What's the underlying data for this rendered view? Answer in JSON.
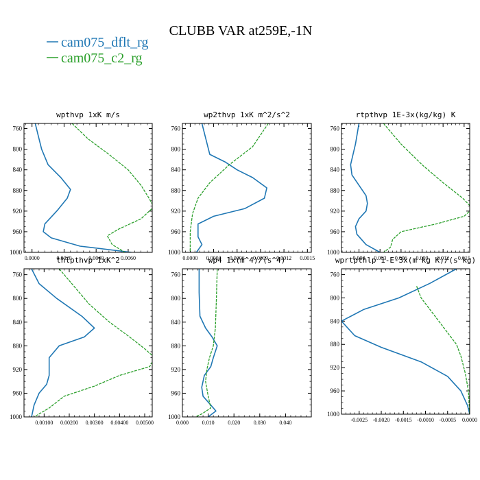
{
  "figure": {
    "title": "CLUBB VAR at259E,-1N",
    "legend": [
      {
        "label": "cam075_dflt_rg",
        "color": "#1f77b4"
      },
      {
        "label": "cam075_c2_rg",
        "color": "#2ca02c"
      }
    ]
  },
  "chart_data": [
    {
      "type": "line",
      "title": "wpthvp  1xK m/s",
      "ylim": [
        1000,
        750
      ],
      "yticks": [
        760,
        800,
        840,
        880,
        920,
        960,
        1000
      ],
      "xlim": [
        -0.0005,
        0.0075
      ],
      "xticks": [
        0.0,
        0.002,
        0.004,
        0.006
      ],
      "xticklabels": [
        "0.0000",
        "0.0020",
        "0.0040",
        "0.0060"
      ],
      "series": [
        {
          "name": "cam075_dflt_rg",
          "color": "#1f77b4",
          "dashed": false,
          "points": [
            [
              0.0002,
              750
            ],
            [
              0.0004,
              775
            ],
            [
              0.0006,
              800
            ],
            [
              0.001,
              830
            ],
            [
              0.0018,
              855
            ],
            [
              0.0024,
              878
            ],
            [
              0.0022,
              895
            ],
            [
              0.0016,
              918
            ],
            [
              0.0008,
              945
            ],
            [
              0.0007,
              960
            ],
            [
              0.0012,
              972
            ],
            [
              0.003,
              988
            ],
            [
              0.0062,
              1000
            ]
          ]
        },
        {
          "name": "cam075_c2_rg",
          "color": "#2ca02c",
          "dashed": true,
          "points": [
            [
              0.0025,
              750
            ],
            [
              0.0035,
              780
            ],
            [
              0.0048,
              810
            ],
            [
              0.006,
              840
            ],
            [
              0.0068,
              870
            ],
            [
              0.0073,
              895
            ],
            [
              0.0076,
              912
            ],
            [
              0.0068,
              935
            ],
            [
              0.0054,
              955
            ],
            [
              0.0047,
              968
            ],
            [
              0.005,
              985
            ],
            [
              0.0058,
              1000
            ]
          ]
        }
      ]
    },
    {
      "type": "line",
      "title": "wp2thvp  1xK m^2/s^2",
      "ylim": [
        1000,
        750
      ],
      "yticks": [
        760,
        800,
        840,
        880,
        920,
        960,
        1000
      ],
      "xlim": [
        -0.0001,
        0.00155
      ],
      "xticks": [
        0.0,
        0.0003,
        0.0006,
        0.0009,
        0.0012,
        0.0015
      ],
      "xticklabels": [
        "0.0000",
        "0.0003",
        "0.0006",
        "0.0009",
        "0.0012",
        "0.0015"
      ],
      "series": [
        {
          "name": "cam075_dflt_rg",
          "color": "#1f77b4",
          "dashed": false,
          "points": [
            [
              0.00015,
              750
            ],
            [
              0.0002,
              780
            ],
            [
              0.00025,
              810
            ],
            [
              0.00045,
              825
            ],
            [
              0.0006,
              840
            ],
            [
              0.0008,
              855
            ],
            [
              0.00098,
              875
            ],
            [
              0.00095,
              895
            ],
            [
              0.0007,
              915
            ],
            [
              0.0003,
              930
            ],
            [
              0.0001,
              945
            ],
            [
              0.0001,
              970
            ],
            [
              0.00015,
              985
            ],
            [
              8e-05,
              1000
            ]
          ]
        },
        {
          "name": "cam075_c2_rg",
          "color": "#2ca02c",
          "dashed": true,
          "points": [
            [
              0.001,
              750
            ],
            [
              0.0008,
              795
            ],
            [
              0.0005,
              830
            ],
            [
              0.00025,
              865
            ],
            [
              0.0001,
              895
            ],
            [
              3e-05,
              925
            ],
            [
              0.0,
              960
            ],
            [
              0.0,
              1000
            ]
          ]
        }
      ]
    },
    {
      "type": "line",
      "title": "rtpthvp  1E-3x(kg/kg) K",
      "ylim": [
        1000,
        750
      ],
      "yticks": [
        760,
        800,
        840,
        880,
        920,
        960,
        1000
      ],
      "xlim": [
        -0.0025,
        0.0158
      ],
      "xticks": [
        0.0,
        0.003,
        0.006,
        0.009,
        0.012,
        0.015
      ],
      "xticklabels": [
        "0.000",
        "0.003",
        "0.006",
        "0.009",
        "0.012",
        "0.015"
      ],
      "series": [
        {
          "name": "cam075_dflt_rg",
          "color": "#1f77b4",
          "dashed": false,
          "points": [
            [
              0.0,
              750
            ],
            [
              -0.0005,
              790
            ],
            [
              -0.0012,
              830
            ],
            [
              -0.001,
              850
            ],
            [
              0.0,
              870
            ],
            [
              0.001,
              890
            ],
            [
              0.0012,
              905
            ],
            [
              0.001,
              920
            ],
            [
              0.0,
              935
            ],
            [
              -0.0005,
              950
            ],
            [
              -0.0003,
              965
            ],
            [
              0.001,
              985
            ],
            [
              0.003,
              1000
            ]
          ]
        },
        {
          "name": "cam075_c2_rg",
          "color": "#2ca02c",
          "dashed": true,
          "points": [
            [
              0.0035,
              750
            ],
            [
              0.006,
              790
            ],
            [
              0.009,
              830
            ],
            [
              0.012,
              865
            ],
            [
              0.0148,
              895
            ],
            [
              0.0162,
              915
            ],
            [
              0.015,
              930
            ],
            [
              0.011,
              945
            ],
            [
              0.006,
              960
            ],
            [
              0.0048,
              975
            ],
            [
              0.0045,
              990
            ],
            [
              0.0035,
              1000
            ]
          ]
        }
      ]
    },
    {
      "type": "line",
      "title": "thlpthvp  1xK^2",
      "ylim": [
        1000,
        750
      ],
      "yticks": [
        760,
        800,
        840,
        880,
        920,
        960,
        1000
      ],
      "xlim": [
        0.0002,
        0.0053
      ],
      "xticks": [
        0.001,
        0.002,
        0.003,
        0.004,
        0.005
      ],
      "xticklabels": [
        "0.00100",
        "0.00200",
        "0.00300",
        "0.00400",
        "0.00500"
      ],
      "series": [
        {
          "name": "cam075_dflt_rg",
          "color": "#1f77b4",
          "dashed": false,
          "points": [
            [
              0.0005,
              750
            ],
            [
              0.0008,
              775
            ],
            [
              0.0015,
              800
            ],
            [
              0.0025,
              830
            ],
            [
              0.003,
              850
            ],
            [
              0.0026,
              865
            ],
            [
              0.0016,
              880
            ],
            [
              0.0012,
              900
            ],
            [
              0.0012,
              930
            ],
            [
              0.0011,
              945
            ],
            [
              0.0008,
              960
            ],
            [
              0.0006,
              980
            ],
            [
              0.0005,
              1000
            ]
          ]
        },
        {
          "name": "cam075_c2_rg",
          "color": "#2ca02c",
          "dashed": true,
          "points": [
            [
              0.0016,
              750
            ],
            [
              0.0022,
              780
            ],
            [
              0.0028,
              810
            ],
            [
              0.0036,
              840
            ],
            [
              0.0044,
              865
            ],
            [
              0.005,
              885
            ],
            [
              0.0054,
              900
            ],
            [
              0.0052,
              915
            ],
            [
              0.004,
              930
            ],
            [
              0.003,
              948
            ],
            [
              0.0018,
              965
            ],
            [
              0.0012,
              985
            ],
            [
              0.0006,
              1000
            ]
          ]
        }
      ]
    },
    {
      "type": "line",
      "title": "wp4  1x(m^4)/(s^4)",
      "ylim": [
        1000,
        750
      ],
      "yticks": [
        760,
        800,
        840,
        880,
        920,
        960,
        1000
      ],
      "xlim": [
        0.0,
        0.05
      ],
      "xticks": [
        0.0,
        0.01,
        0.02,
        0.03,
        0.04
      ],
      "xticklabels": [
        "0.000",
        "0.010",
        "0.020",
        "0.030",
        "0.040"
      ],
      "series": [
        {
          "name": "cam075_dflt_rg",
          "color": "#1f77b4",
          "dashed": false,
          "points": [
            [
              0.0065,
              750
            ],
            [
              0.0065,
              790
            ],
            [
              0.0068,
              830
            ],
            [
              0.009,
              850
            ],
            [
              0.0115,
              865
            ],
            [
              0.0135,
              880
            ],
            [
              0.012,
              900
            ],
            [
              0.011,
              915
            ],
            [
              0.0085,
              930
            ],
            [
              0.0075,
              950
            ],
            [
              0.008,
              965
            ],
            [
              0.011,
              980
            ],
            [
              0.013,
              990
            ],
            [
              0.01,
              1000
            ]
          ]
        },
        {
          "name": "cam075_c2_rg",
          "color": "#2ca02c",
          "dashed": true,
          "points": [
            [
              0.0135,
              750
            ],
            [
              0.0132,
              800
            ],
            [
              0.0128,
              850
            ],
            [
              0.012,
              880
            ],
            [
              0.0105,
              900
            ],
            [
              0.0095,
              920
            ],
            [
              0.009,
              940
            ],
            [
              0.0098,
              960
            ],
            [
              0.0105,
              975
            ],
            [
              0.011,
              985
            ],
            [
              0.0075,
              995
            ],
            [
              0.005,
              1000
            ]
          ]
        }
      ]
    },
    {
      "type": "line",
      "title": "wprtpthlp  1-E-3x(m kg K)/(s kg)",
      "ylim": [
        1000,
        750
      ],
      "yticks": [
        760,
        800,
        840,
        880,
        920,
        960,
        1000
      ],
      "xlim": [
        -0.0029,
        0.0
      ],
      "xticks": [
        -0.0025,
        -0.002,
        -0.0015,
        -0.001,
        -0.0005,
        0.0
      ],
      "xticklabels": [
        "-0.0025",
        "-0.0020",
        "-0.0015",
        "-0.0010",
        "-0.0005",
        "0.0000"
      ],
      "series": [
        {
          "name": "cam075_dflt_rg",
          "color": "#1f77b4",
          "dashed": false,
          "points": [
            [
              -0.0003,
              750
            ],
            [
              -0.0009,
              775
            ],
            [
              -0.0016,
              800
            ],
            [
              -0.0024,
              820
            ],
            [
              -0.0029,
              840
            ],
            [
              -0.0026,
              865
            ],
            [
              -0.002,
              885
            ],
            [
              -0.0011,
              910
            ],
            [
              -0.0005,
              935
            ],
            [
              -0.0002,
              960
            ],
            [
              -5e-05,
              985
            ],
            [
              0.0,
              1000
            ]
          ]
        },
        {
          "name": "cam075_c2_rg",
          "color": "#2ca02c",
          "dashed": true,
          "points": [
            [
              -0.0012,
              780
            ],
            [
              -0.0011,
              800
            ],
            [
              -0.0009,
              820
            ],
            [
              -0.0007,
              840
            ],
            [
              -0.0005,
              860
            ],
            [
              -0.0003,
              880
            ],
            [
              -0.0002,
              900
            ],
            [
              -0.0001,
              930
            ],
            [
              -3e-05,
              960
            ],
            [
              0.0,
              1000
            ]
          ]
        }
      ]
    }
  ]
}
